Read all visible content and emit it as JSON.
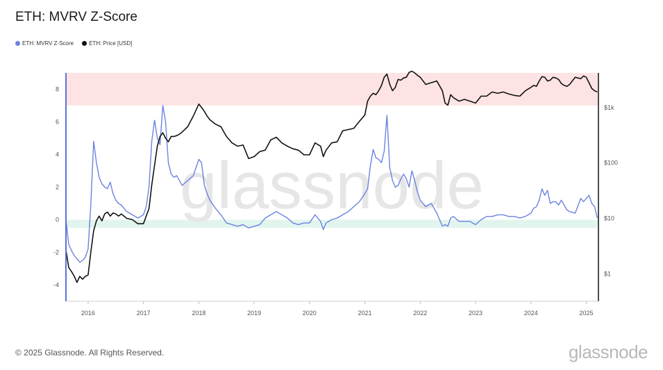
{
  "header": {
    "title": "ETH: MVRV Z-Score"
  },
  "legend": [
    {
      "label": "ETH: MVRV Z-Score",
      "color": "#6b82e0"
    },
    {
      "label": "ETH: Price [USD]",
      "color": "#111111"
    }
  ],
  "footer": {
    "copyright": "© 2025 Glassnode. All Rights Reserved.",
    "brand": "glassnode"
  },
  "watermark": "glassnode",
  "chart_data": {
    "type": "line",
    "title": "ETH: MVRV Z-Score",
    "x_ticks": [
      "2016",
      "2017",
      "2018",
      "2019",
      "2020",
      "2021",
      "2022",
      "2023",
      "2024",
      "2025"
    ],
    "x_range": [
      2015.6,
      2025.22
    ],
    "y_left": {
      "range": [
        -5,
        9
      ],
      "ticks": [
        "8",
        "6",
        "4",
        "2",
        "0",
        "-2",
        "-4"
      ]
    },
    "y_right": {
      "scale": "log",
      "range": [
        0.32,
        4200
      ],
      "ticks": [
        "$1k",
        "$100",
        "$10",
        "$1"
      ]
    },
    "bands": [
      {
        "name": "overvalued",
        "y": [
          7,
          9
        ],
        "color": "#fde3e3"
      },
      {
        "name": "undervalued",
        "y": [
          -0.5,
          0
        ],
        "color": "#e1f5ee"
      }
    ],
    "series": [
      {
        "name": "ETH: MVRV Z-Score",
        "axis": "left",
        "color": "#6b82e0",
        "x": [
          2015.6,
          2015.65,
          2015.7,
          2015.75,
          2015.8,
          2015.85,
          2015.9,
          2015.95,
          2016.0,
          2016.05,
          2016.1,
          2016.15,
          2016.2,
          2016.25,
          2016.3,
          2016.35,
          2016.4,
          2016.45,
          2016.5,
          2016.55,
          2016.6,
          2016.7,
          2016.8,
          2016.9,
          2017.0,
          2017.05,
          2017.1,
          2017.15,
          2017.2,
          2017.25,
          2017.3,
          2017.35,
          2017.4,
          2017.45,
          2017.5,
          2017.55,
          2017.6,
          2017.65,
          2017.7,
          2017.8,
          2017.9,
          2018.0,
          2018.05,
          2018.1,
          2018.15,
          2018.2,
          2018.3,
          2018.4,
          2018.5,
          2018.6,
          2018.7,
          2018.8,
          2018.9,
          2019.0,
          2019.1,
          2019.2,
          2019.3,
          2019.4,
          2019.5,
          2019.6,
          2019.7,
          2019.8,
          2019.9,
          2020.0,
          2020.1,
          2020.2,
          2020.25,
          2020.3,
          2020.4,
          2020.5,
          2020.6,
          2020.7,
          2020.8,
          2020.9,
          2021.0,
          2021.05,
          2021.1,
          2021.15,
          2021.2,
          2021.25,
          2021.3,
          2021.35,
          2021.4,
          2021.45,
          2021.5,
          2021.55,
          2021.6,
          2021.65,
          2021.7,
          2021.75,
          2021.8,
          2021.85,
          2021.9,
          2021.95,
          2022.0,
          2022.1,
          2022.2,
          2022.3,
          2022.4,
          2022.45,
          2022.5,
          2022.55,
          2022.6,
          2022.7,
          2022.8,
          2022.9,
          2023.0,
          2023.1,
          2023.2,
          2023.3,
          2023.4,
          2023.5,
          2023.6,
          2023.7,
          2023.8,
          2023.9,
          2024.0,
          2024.05,
          2024.1,
          2024.15,
          2024.2,
          2024.25,
          2024.3,
          2024.35,
          2024.4,
          2024.45,
          2024.5,
          2024.55,
          2024.6,
          2024.65,
          2024.7,
          2024.8,
          2024.9,
          2024.95,
          2025.0,
          2025.05,
          2025.1,
          2025.15,
          2025.2
        ],
        "y": [
          0.0,
          -1.5,
          -1.9,
          -2.2,
          -2.4,
          -2.6,
          -2.5,
          -2.3,
          -1.8,
          1.0,
          4.8,
          3.5,
          2.6,
          2.2,
          2.0,
          1.9,
          2.3,
          1.6,
          1.2,
          1.0,
          0.9,
          0.5,
          0.3,
          0.1,
          0.3,
          0.8,
          2.0,
          4.8,
          6.1,
          5.0,
          4.6,
          7.0,
          6.0,
          3.5,
          2.8,
          2.6,
          2.7,
          2.4,
          2.1,
          2.4,
          2.7,
          3.7,
          3.5,
          2.1,
          1.6,
          1.2,
          0.7,
          0.3,
          -0.2,
          -0.3,
          -0.4,
          -0.3,
          -0.5,
          -0.4,
          -0.3,
          0.1,
          0.3,
          0.5,
          0.3,
          0.1,
          -0.2,
          -0.3,
          -0.2,
          -0.2,
          0.3,
          -0.1,
          -0.6,
          -0.2,
          0.0,
          0.1,
          0.3,
          0.5,
          0.8,
          1.1,
          1.6,
          1.9,
          3.3,
          4.3,
          3.8,
          3.7,
          3.5,
          4.2,
          6.4,
          3.2,
          2.4,
          2.0,
          2.1,
          2.5,
          2.8,
          2.5,
          2.0,
          3.0,
          2.4,
          1.7,
          1.2,
          0.8,
          1.0,
          0.4,
          -0.4,
          -0.3,
          -0.4,
          0.1,
          0.2,
          -0.1,
          -0.1,
          -0.1,
          -0.3,
          0.0,
          0.2,
          0.2,
          0.3,
          0.3,
          0.2,
          0.2,
          0.1,
          0.2,
          0.4,
          0.7,
          0.8,
          1.2,
          1.9,
          1.5,
          1.8,
          1.0,
          1.1,
          1.1,
          0.9,
          1.2,
          0.9,
          0.6,
          0.5,
          0.4,
          1.3,
          1.1,
          1.3,
          1.5,
          1.0,
          0.8,
          0.1
        ]
      },
      {
        "name": "ETH: Price [USD]",
        "axis": "right",
        "color": "#111111",
        "x": [
          2015.6,
          2015.65,
          2015.7,
          2015.75,
          2015.8,
          2015.85,
          2015.9,
          2015.95,
          2016.0,
          2016.05,
          2016.1,
          2016.15,
          2016.2,
          2016.25,
          2016.3,
          2016.35,
          2016.4,
          2016.45,
          2016.5,
          2016.55,
          2016.6,
          2016.7,
          2016.8,
          2016.9,
          2017.0,
          2017.05,
          2017.1,
          2017.15,
          2017.2,
          2017.25,
          2017.3,
          2017.35,
          2017.4,
          2017.45,
          2017.5,
          2017.55,
          2017.6,
          2017.65,
          2017.7,
          2017.8,
          2017.9,
          2018.0,
          2018.05,
          2018.1,
          2018.15,
          2018.2,
          2018.3,
          2018.4,
          2018.5,
          2018.6,
          2018.7,
          2018.8,
          2018.9,
          2019.0,
          2019.1,
          2019.2,
          2019.3,
          2019.4,
          2019.5,
          2019.6,
          2019.7,
          2019.8,
          2019.9,
          2020.0,
          2020.1,
          2020.2,
          2020.25,
          2020.3,
          2020.4,
          2020.5,
          2020.6,
          2020.7,
          2020.8,
          2020.9,
          2021.0,
          2021.05,
          2021.1,
          2021.15,
          2021.2,
          2021.25,
          2021.3,
          2021.35,
          2021.4,
          2021.45,
          2021.5,
          2021.55,
          2021.6,
          2021.65,
          2021.7,
          2021.75,
          2021.8,
          2021.85,
          2021.9,
          2021.95,
          2022.0,
          2022.1,
          2022.2,
          2022.3,
          2022.4,
          2022.45,
          2022.5,
          2022.55,
          2022.6,
          2022.7,
          2022.8,
          2022.9,
          2023.0,
          2023.1,
          2023.2,
          2023.3,
          2023.4,
          2023.5,
          2023.6,
          2023.7,
          2023.8,
          2023.9,
          2024.0,
          2024.05,
          2024.1,
          2024.15,
          2024.2,
          2024.25,
          2024.3,
          2024.35,
          2024.4,
          2024.45,
          2024.5,
          2024.55,
          2024.6,
          2024.65,
          2024.7,
          2024.8,
          2024.9,
          2024.95,
          2025.0,
          2025.05,
          2025.1,
          2025.15,
          2025.2
        ],
        "y": [
          2.7,
          1.3,
          1.1,
          0.9,
          0.7,
          0.9,
          0.8,
          0.9,
          0.95,
          2.5,
          6.0,
          9.0,
          11.0,
          9.0,
          12.0,
          13.0,
          11.0,
          12.5,
          12.0,
          11.0,
          12.0,
          10.0,
          9.5,
          8.0,
          8.0,
          11.0,
          15.0,
          40.0,
          90.0,
          200.0,
          300.0,
          350.0,
          280.0,
          240.0,
          300.0,
          300.0,
          310.0,
          330.0,
          360.0,
          450.0,
          700.0,
          1150.0,
          1000.0,
          850.0,
          700.0,
          600.0,
          500.0,
          450.0,
          300.0,
          230.0,
          200.0,
          210.0,
          120.0,
          130.0,
          160.0,
          170.0,
          260.0,
          290.0,
          230.0,
          200.0,
          180.0,
          170.0,
          140.0,
          140.0,
          230.0,
          200.0,
          130.0,
          170.0,
          230.0,
          240.0,
          380.0,
          400.0,
          420.0,
          560.0,
          730.0,
          1300.0,
          1600.0,
          1800.0,
          1700.0,
          2000.0,
          2500.0,
          3500.0,
          4000.0,
          2600.0,
          2000.0,
          2300.0,
          3200.0,
          3100.0,
          3400.0,
          3500.0,
          4300.0,
          4500.0,
          4200.0,
          3800.0,
          3500.0,
          2600.0,
          2800.0,
          3000.0,
          2000.0,
          1200.0,
          1100.0,
          1700.0,
          1500.0,
          1300.0,
          1400.0,
          1300.0,
          1200.0,
          1600.0,
          1600.0,
          1900.0,
          1800.0,
          1900.0,
          1750.0,
          1650.0,
          1600.0,
          2000.0,
          2300.0,
          2500.0,
          2400.0,
          3000.0,
          3600.0,
          3500.0,
          3000.0,
          3100.0,
          3500.0,
          3400.0,
          3200.0,
          2700.0,
          2500.0,
          2400.0,
          2600.0,
          3500.0,
          3300.0,
          3700.0,
          3500.0,
          2800.0,
          2200.0,
          2000.0,
          1900.0
        ]
      }
    ]
  }
}
